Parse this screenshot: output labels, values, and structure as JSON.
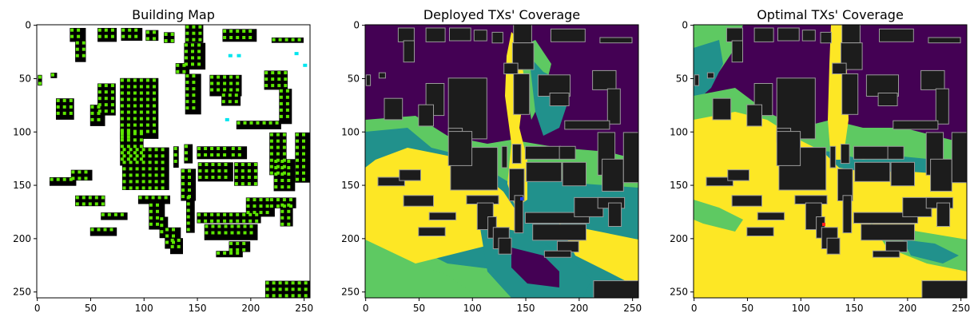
{
  "chart_data": [
    {
      "type": "heatmap",
      "title": "Building Map",
      "xlim": [
        0,
        255
      ],
      "ylim": [
        255,
        0
      ],
      "x_ticks": [
        0,
        50,
        100,
        150,
        200,
        250
      ],
      "y_ticks": [
        0,
        50,
        100,
        150,
        200,
        250
      ],
      "legend": "none",
      "grid": false,
      "colors": {
        "background": "#ffffff",
        "building": "#000000",
        "candidate_site": "#5ce600",
        "selected_site": "#00e5ee"
      }
    },
    {
      "type": "heatmap",
      "title": "Deployed TXs' Coverage",
      "xlim": [
        0,
        255
      ],
      "ylim": [
        255,
        0
      ],
      "x_ticks": [
        0,
        50,
        100,
        150,
        200,
        250
      ],
      "y_ticks": [
        0,
        50,
        100,
        150,
        200,
        250
      ],
      "legend": "none",
      "grid": false,
      "colormap": [
        "#440154",
        "#21918c",
        "#5ec962",
        "#fde725"
      ],
      "colors": {
        "building": "#1c1c1c",
        "tx_marker": "#1f3cff"
      }
    },
    {
      "type": "heatmap",
      "title": "Optimal TXs' Coverage",
      "xlim": [
        0,
        255
      ],
      "ylim": [
        255,
        0
      ],
      "x_ticks": [
        0,
        50,
        100,
        150,
        200,
        250
      ],
      "y_ticks": [
        0,
        50,
        100,
        150,
        200,
        250
      ],
      "legend": "none",
      "grid": false,
      "colormap": [
        "#440154",
        "#21918c",
        "#5ec962",
        "#fde725"
      ],
      "colors": {
        "building": "#1c1c1c",
        "tx_marker": "#ff2020"
      }
    }
  ]
}
